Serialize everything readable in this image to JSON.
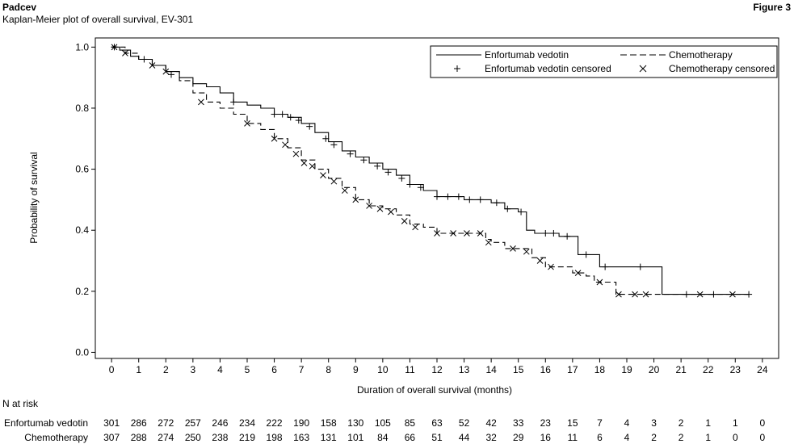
{
  "header": {
    "brand": "Padcev",
    "subtitle": "Kaplan-Meier plot of overall survival, EV-301",
    "figure_label": "Figure 3"
  },
  "chart_data": {
    "type": "line",
    "step": true,
    "xlabel": "Duration of overall survival (months)",
    "ylabel": "Probability of survival",
    "xlim": [
      -0.6,
      24.6
    ],
    "ylim": [
      -0.02,
      1.03
    ],
    "x_ticks": [
      0,
      1,
      2,
      3,
      4,
      5,
      6,
      7,
      8,
      9,
      10,
      11,
      12,
      13,
      14,
      15,
      16,
      17,
      18,
      19,
      20,
      21,
      22,
      23,
      24
    ],
    "y_ticks": [
      "0.0",
      "0.2",
      "0.4",
      "0.6",
      "0.8",
      "1.0"
    ],
    "legend": {
      "position": "top-right",
      "entries": [
        "Enfortumab vedotin",
        "Chemotherapy",
        "Enfortumab vedotin censored",
        "Chemotherapy censored"
      ]
    },
    "series": [
      {
        "name": "Enfortumab vedotin",
        "line_style": "solid",
        "censor_marker": "+",
        "points": [
          [
            0,
            1.0
          ],
          [
            0.3,
            0.99
          ],
          [
            0.7,
            0.97
          ],
          [
            1,
            0.96
          ],
          [
            1.5,
            0.94
          ],
          [
            2,
            0.92
          ],
          [
            2.5,
            0.9
          ],
          [
            3,
            0.88
          ],
          [
            3.5,
            0.87
          ],
          [
            4,
            0.85
          ],
          [
            4.5,
            0.82
          ],
          [
            5,
            0.81
          ],
          [
            5.5,
            0.8
          ],
          [
            6,
            0.78
          ],
          [
            6.5,
            0.77
          ],
          [
            7,
            0.75
          ],
          [
            7.5,
            0.72
          ],
          [
            8,
            0.69
          ],
          [
            8.5,
            0.66
          ],
          [
            9,
            0.64
          ],
          [
            9.5,
            0.62
          ],
          [
            10,
            0.6
          ],
          [
            10.5,
            0.58
          ],
          [
            11,
            0.55
          ],
          [
            11.5,
            0.53
          ],
          [
            12,
            0.51
          ],
          [
            12.5,
            0.51
          ],
          [
            13,
            0.5
          ],
          [
            13.5,
            0.5
          ],
          [
            14,
            0.49
          ],
          [
            14.5,
            0.47
          ],
          [
            15,
            0.46
          ],
          [
            15.3,
            0.4
          ],
          [
            15.6,
            0.39
          ],
          [
            16.5,
            0.38
          ],
          [
            17,
            0.38
          ],
          [
            17.2,
            0.32
          ],
          [
            17.7,
            0.32
          ],
          [
            18,
            0.28
          ],
          [
            19.5,
            0.28
          ],
          [
            20.3,
            0.28
          ],
          [
            20.3,
            0.19
          ],
          [
            23.5,
            0.19
          ]
        ],
        "censored": [
          [
            0.1,
            1.0
          ],
          [
            1.2,
            0.96
          ],
          [
            2.2,
            0.91
          ],
          [
            4.5,
            0.82
          ],
          [
            6,
            0.78
          ],
          [
            6.3,
            0.78
          ],
          [
            6.6,
            0.77
          ],
          [
            6.9,
            0.76
          ],
          [
            7.3,
            0.74
          ],
          [
            7.9,
            0.7
          ],
          [
            8.2,
            0.68
          ],
          [
            8.8,
            0.65
          ],
          [
            9.3,
            0.63
          ],
          [
            9.8,
            0.61
          ],
          [
            10.2,
            0.59
          ],
          [
            10.7,
            0.57
          ],
          [
            11,
            0.55
          ],
          [
            11.4,
            0.54
          ],
          [
            12,
            0.51
          ],
          [
            12.4,
            0.51
          ],
          [
            12.8,
            0.51
          ],
          [
            13.2,
            0.5
          ],
          [
            13.6,
            0.5
          ],
          [
            14.2,
            0.49
          ],
          [
            14.6,
            0.47
          ],
          [
            15.1,
            0.46
          ],
          [
            16,
            0.39
          ],
          [
            16.3,
            0.39
          ],
          [
            16.8,
            0.38
          ],
          [
            17.5,
            0.32
          ],
          [
            18.2,
            0.28
          ],
          [
            19.5,
            0.28
          ],
          [
            21.2,
            0.19
          ],
          [
            22.2,
            0.19
          ],
          [
            23.5,
            0.19
          ]
        ]
      },
      {
        "name": "Chemotherapy",
        "line_style": "dashed",
        "censor_marker": "x",
        "points": [
          [
            0,
            1.0
          ],
          [
            0.5,
            0.98
          ],
          [
            1,
            0.96
          ],
          [
            1.5,
            0.94
          ],
          [
            2,
            0.92
          ],
          [
            2.5,
            0.89
          ],
          [
            3,
            0.85
          ],
          [
            3.5,
            0.82
          ],
          [
            4,
            0.8
          ],
          [
            4.5,
            0.78
          ],
          [
            5,
            0.75
          ],
          [
            5.5,
            0.73
          ],
          [
            6,
            0.7
          ],
          [
            6.5,
            0.67
          ],
          [
            7,
            0.63
          ],
          [
            7.5,
            0.6
          ],
          [
            8,
            0.57
          ],
          [
            8.5,
            0.54
          ],
          [
            9,
            0.5
          ],
          [
            9.5,
            0.48
          ],
          [
            10,
            0.47
          ],
          [
            10.5,
            0.45
          ],
          [
            11,
            0.42
          ],
          [
            11.5,
            0.41
          ],
          [
            12,
            0.39
          ],
          [
            12.5,
            0.39
          ],
          [
            13,
            0.39
          ],
          [
            13.5,
            0.39
          ],
          [
            13.8,
            0.37
          ],
          [
            14,
            0.36
          ],
          [
            14.5,
            0.34
          ],
          [
            15,
            0.34
          ],
          [
            15.5,
            0.31
          ],
          [
            16,
            0.28
          ],
          [
            16.5,
            0.28
          ],
          [
            17,
            0.26
          ],
          [
            17.5,
            0.25
          ],
          [
            17.8,
            0.23
          ],
          [
            18.2,
            0.23
          ],
          [
            18.6,
            0.19
          ],
          [
            23.5,
            0.19
          ]
        ],
        "censored": [
          [
            0.1,
            1.0
          ],
          [
            0.5,
            0.98
          ],
          [
            1.5,
            0.94
          ],
          [
            2,
            0.92
          ],
          [
            3.3,
            0.82
          ],
          [
            5,
            0.75
          ],
          [
            6,
            0.7
          ],
          [
            6.4,
            0.68
          ],
          [
            6.8,
            0.65
          ],
          [
            7.1,
            0.62
          ],
          [
            7.4,
            0.61
          ],
          [
            7.8,
            0.58
          ],
          [
            8.2,
            0.56
          ],
          [
            8.6,
            0.53
          ],
          [
            9,
            0.5
          ],
          [
            9.5,
            0.48
          ],
          [
            9.9,
            0.47
          ],
          [
            10.3,
            0.46
          ],
          [
            10.8,
            0.43
          ],
          [
            11.2,
            0.41
          ],
          [
            12,
            0.39
          ],
          [
            12.6,
            0.39
          ],
          [
            13.1,
            0.39
          ],
          [
            13.6,
            0.39
          ],
          [
            13.9,
            0.36
          ],
          [
            14.8,
            0.34
          ],
          [
            15.3,
            0.33
          ],
          [
            15.8,
            0.3
          ],
          [
            16.2,
            0.28
          ],
          [
            17.2,
            0.26
          ],
          [
            18,
            0.23
          ],
          [
            18.7,
            0.19
          ],
          [
            19.3,
            0.19
          ],
          [
            19.7,
            0.19
          ],
          [
            21.7,
            0.19
          ],
          [
            22.9,
            0.19
          ]
        ]
      }
    ],
    "risk_table": {
      "title": "N at risk",
      "rows": [
        {
          "label": "Enfortumab vedotin",
          "values": [
            "301",
            "286",
            "272",
            "257",
            "246",
            "234",
            "222",
            "190",
            "158",
            "130",
            "105",
            "85",
            "63",
            "52",
            "42",
            "33",
            "23",
            "15",
            "7",
            "4",
            "3",
            "2",
            "1",
            "1",
            "0"
          ]
        },
        {
          "label": "Chemotherapy",
          "values": [
            "307",
            "288",
            "274",
            "250",
            "238",
            "219",
            "198",
            "163",
            "131",
            "101",
            "84",
            "66",
            "51",
            "44",
            "32",
            "29",
            "16",
            "11",
            "6",
            "4",
            "2",
            "2",
            "1",
            "0",
            "0"
          ]
        }
      ]
    }
  }
}
